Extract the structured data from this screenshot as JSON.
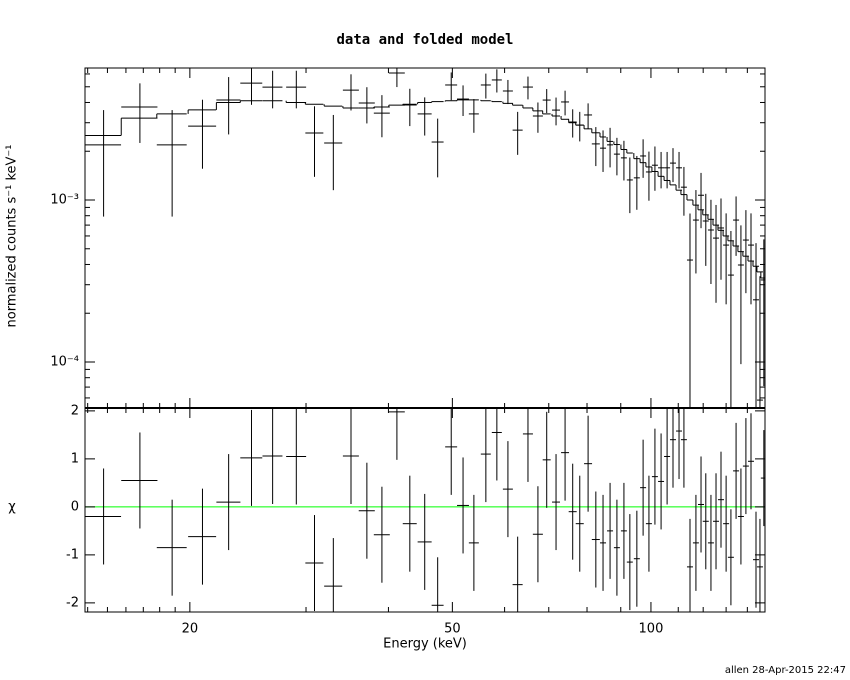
{
  "chart_data": [
    {
      "type": "spectrum",
      "title": "data and folded model",
      "y_label": "normalized counts s⁻¹ keV⁻¹",
      "xscale": "log",
      "yscale": "log",
      "color": "#000000",
      "xlim": [
        13.87,
        148.9
      ],
      "ylim": [
        5.2e-05,
        0.00653
      ],
      "xticks": [
        20,
        50,
        100
      ],
      "xminorticks": [
        14,
        15,
        16,
        17,
        18,
        19,
        30,
        40,
        60,
        70,
        80,
        90,
        110,
        120,
        130,
        140
      ],
      "yticks": [
        {
          "value": 0.0001,
          "label": "10⁻⁴"
        },
        {
          "value": 0.001,
          "label": "10⁻³"
        }
      ],
      "yminorticks": [
        6e-05,
        7e-05,
        8e-05,
        9e-05,
        0.0002,
        0.0003,
        0.0004,
        0.0005,
        0.0006,
        0.0007,
        0.0008,
        0.0009,
        0.002,
        0.003,
        0.004,
        0.005,
        0.006
      ],
      "x": [
        14.8,
        16.8,
        18.8,
        20.9,
        22.9,
        24.8,
        26.7,
        29.0,
        30.9,
        33.0,
        35.1,
        37.1,
        39.1,
        41.2,
        43.1,
        45.4,
        47.5,
        49.8,
        51.9,
        53.9,
        56.2,
        58.4,
        60.7,
        62.8,
        65.1,
        67.4,
        69.5,
        71.8,
        74.1,
        76.1,
        78.0,
        80.3,
        82.5,
        84.6,
        86.7,
        88.8,
        91.0,
        92.9,
        95.2,
        97.3,
        99.3,
        101.4,
        103.6,
        105.8,
        108.0,
        110.3,
        112.2,
        114.6,
        117.0,
        119.1,
        121.1,
        123.3,
        125.5,
        127.7,
        130.0,
        132.2,
        134.6,
        136.9,
        139.3,
        141.8,
        144.3,
        146.3,
        148.3
      ],
      "xerr": [
        0.93,
        1.06,
        0.98,
        1.02,
        0.96,
        0.95,
        0.93,
        1.01,
        0.97,
        1.04,
        0.98,
        1.04,
        1.09,
        1.15,
        1.05,
        1.11,
        0.99,
        1.04,
        1.08,
        0.94,
        0.98,
        1.02,
        1.06,
        1.1,
        1.14,
        1.18,
        0.97,
        1.0,
        1.03,
        1.06,
        1.09,
        1.12,
        1.15,
        0.89,
        0.91,
        0.93,
        0.95,
        0.97,
        1.0,
        1.02,
        1.04,
        1.06,
        1.08,
        1.11,
        1.13,
        1.15,
        1.17,
        1.2,
        1.22,
        1.25,
        1.27,
        1.29,
        1.31,
        1.34,
        1.36,
        1.38,
        1.41,
        1.43,
        1.46,
        1.48,
        1.51,
        1.53,
        1.55
      ],
      "values": [
        0.00219,
        0.00375,
        0.00219,
        0.00286,
        0.00414,
        0.00527,
        0.00498,
        0.00498,
        0.00259,
        0.00225,
        0.00477,
        0.00397,
        0.00344,
        0.00608,
        0.00386,
        0.0034,
        0.00228,
        0.00513,
        0.0042,
        0.0034,
        0.00513,
        0.00551,
        0.00471,
        0.0027,
        0.00498,
        0.0033,
        0.00414,
        0.00359,
        0.00403,
        0.00303,
        0.0029,
        0.00335,
        0.00222,
        0.00209,
        0.00219,
        0.00192,
        0.00182,
        0.00133,
        0.00137,
        0.00187,
        0.00149,
        0.00164,
        0.00158,
        0.00158,
        0.00169,
        0.00158,
        0.0012,
        0.000426,
        0.000752,
        0.00107,
        0.000742,
        0.000653,
        0.000582,
        0.000672,
        0.000527,
        0.000344,
        0.000752,
        0.000397,
        0.000566,
        0.000527,
        0.000242,
        5.82e-05,
        0.000321
      ],
      "yerr": [
        0.0014,
        0.0015,
        0.0014,
        0.0013,
        0.0016,
        0.0014,
        0.0013,
        0.0013,
        0.0012,
        0.0011,
        0.0012,
        0.001,
        0.001,
        0.0011,
        0.001,
        0.0009,
        0.0009,
        0.001,
        0.0009,
        0.0008,
        0.0009,
        0.0009,
        0.0008,
        0.0008,
        0.0008,
        0.0007,
        0.0007,
        0.0007,
        0.0007,
        0.0006,
        0.0006,
        0.0006,
        0.0006,
        0.0006,
        0.0006,
        0.0005,
        0.0005,
        0.0005,
        0.0005,
        0.0005,
        0.0005,
        0.0005,
        0.0004,
        0.0004,
        0.0004,
        0.0004,
        0.0004,
        0.0004,
        0.0004,
        0.0004,
        0.00035,
        0.00035,
        0.00035,
        0.00035,
        0.0003,
        0.0003,
        0.0003,
        0.0003,
        0.0003,
        0.0003,
        0.0003,
        0.00028,
        0.00025
      ],
      "model": [
        0.0025,
        0.0032,
        0.0034,
        0.0036,
        0.004,
        0.0041,
        0.0041,
        0.004,
        0.0039,
        0.0038,
        0.0037,
        0.0037,
        0.00375,
        0.00385,
        0.0039,
        0.004,
        0.00405,
        0.0041,
        0.00415,
        0.00415,
        0.0041,
        0.00405,
        0.00395,
        0.00385,
        0.0037,
        0.00355,
        0.0034,
        0.0033,
        0.00315,
        0.003,
        0.0029,
        0.00275,
        0.0026,
        0.00245,
        0.0023,
        0.0022,
        0.00205,
        0.00195,
        0.0018,
        0.0017,
        0.0016,
        0.0015,
        0.0014,
        0.00132,
        0.00124,
        0.00115,
        0.00108,
        0.001,
        0.00093,
        0.00087,
        0.00081,
        0.00076,
        0.0007,
        0.00065,
        0.0006,
        0.00056,
        0.00052,
        0.00048,
        0.00045,
        0.00042,
        0.00039,
        0.00036,
        0.00033
      ]
    },
    {
      "type": "residuals",
      "y_label": "χ",
      "x_label": "Energy (keV)",
      "footer": "allen 28-Apr-2015 22:47",
      "xscale": "log",
      "yscale": "linear",
      "color": "#000000",
      "xlim": [
        13.87,
        148.9
      ],
      "ylim": [
        -2.19,
        2.06
      ],
      "xticks": [
        20,
        50,
        100
      ],
      "xminorticks": [
        14,
        15,
        16,
        17,
        18,
        19,
        30,
        40,
        60,
        70,
        80,
        90,
        110,
        120,
        130,
        140
      ],
      "yticks": [
        -2,
        -1,
        0,
        1,
        2
      ],
      "hline": 0,
      "hline_color": "#00ff00",
      "x": [
        14.8,
        16.8,
        18.8,
        20.9,
        22.9,
        24.8,
        26.7,
        29.0,
        30.9,
        33.0,
        35.1,
        37.1,
        39.1,
        41.2,
        43.1,
        45.4,
        47.5,
        49.8,
        51.9,
        53.9,
        56.2,
        58.4,
        60.7,
        62.8,
        65.1,
        67.4,
        69.5,
        71.8,
        74.1,
        76.1,
        78.0,
        80.3,
        82.5,
        84.6,
        86.7,
        88.8,
        91.0,
        92.9,
        95.2,
        97.3,
        99.3,
        101.4,
        103.6,
        105.8,
        108.0,
        110.3,
        112.2,
        114.6,
        117.0,
        119.1,
        121.1,
        123.3,
        125.5,
        127.7,
        130.0,
        132.2,
        134.6,
        136.9,
        139.3,
        141.8,
        144.3,
        146.3,
        148.3
      ],
      "xerr": [
        0.93,
        1.06,
        0.98,
        1.02,
        0.96,
        0.95,
        0.93,
        1.01,
        0.97,
        1.04,
        0.98,
        1.04,
        1.09,
        1.15,
        1.05,
        1.11,
        0.99,
        1.04,
        1.08,
        0.94,
        0.98,
        1.02,
        1.06,
        1.1,
        1.14,
        1.18,
        0.97,
        1.0,
        1.03,
        1.06,
        1.09,
        1.12,
        1.15,
        0.89,
        0.91,
        0.93,
        0.95,
        0.97,
        1.0,
        1.02,
        1.04,
        1.06,
        1.08,
        1.11,
        1.13,
        1.15,
        1.17,
        1.2,
        1.22,
        1.25,
        1.27,
        1.29,
        1.31,
        1.34,
        1.36,
        1.38,
        1.41,
        1.43,
        1.46,
        1.48,
        1.51,
        1.53,
        1.55
      ],
      "values": [
        -0.2,
        0.55,
        -0.85,
        -0.62,
        0.1,
        1.02,
        1.06,
        1.05,
        -1.17,
        -1.65,
        1.06,
        -0.08,
        -0.58,
        1.98,
        -0.35,
        -0.73,
        -2.05,
        1.25,
        0.03,
        -0.75,
        1.1,
        1.55,
        0.37,
        -1.62,
        1.52,
        -0.57,
        0.98,
        0.1,
        1.13,
        -0.1,
        -0.35,
        0.9,
        -0.68,
        -0.75,
        -0.5,
        -0.85,
        -0.5,
        -1.15,
        -1.08,
        0.4,
        -0.35,
        0.63,
        0.53,
        1.05,
        1.4,
        1.58,
        1.4,
        -1.25,
        -0.75,
        0.05,
        -0.3,
        -0.75,
        -0.3,
        0.15,
        -0.35,
        -1.05,
        0.75,
        -0.2,
        0.85,
        0.95,
        -1.1,
        -1.25,
        0.6
      ],
      "yerr": [
        1,
        1,
        1,
        1,
        1,
        1,
        1,
        1,
        1,
        1,
        1,
        1,
        1,
        1,
        1,
        1,
        1,
        1,
        1,
        1,
        1,
        1,
        1,
        1,
        1,
        1,
        1,
        1,
        1,
        1,
        1,
        1,
        1,
        1,
        1,
        1,
        1,
        1,
        1,
        1,
        1,
        1,
        1,
        1,
        1,
        1,
        1,
        1,
        1,
        1,
        1,
        1,
        1,
        1,
        1,
        1,
        1,
        1,
        1,
        1,
        1,
        1,
        1
      ]
    }
  ]
}
